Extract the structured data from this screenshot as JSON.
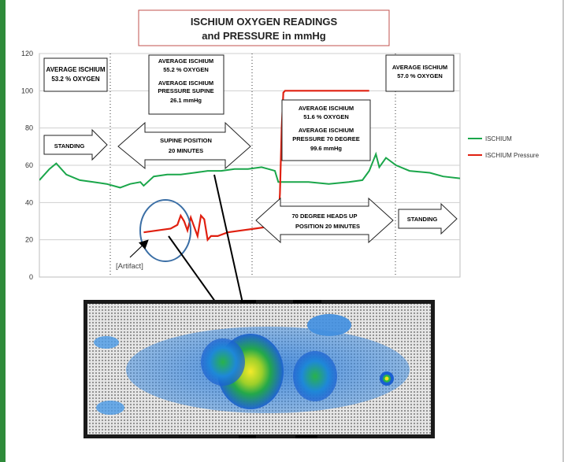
{
  "chart_data": {
    "type": "line",
    "title_line1": "ISCHIUM OXYGEN READINGS",
    "title_line2": "and PRESSURE in mmHg",
    "y_ticks": [
      "0",
      "20",
      "40",
      "60",
      "80",
      "100",
      "120"
    ],
    "ylim": [
      0,
      120
    ],
    "grid": true,
    "legend_position": "right",
    "series": [
      {
        "name": "ISCHIUM",
        "color": "#1aa64a",
        "points": [
          [
            0,
            52
          ],
          [
            3,
            58
          ],
          [
            5,
            61
          ],
          [
            8,
            55
          ],
          [
            12,
            52
          ],
          [
            16,
            51
          ],
          [
            20,
            50
          ],
          [
            24,
            48
          ],
          [
            27,
            50
          ],
          [
            30,
            51
          ],
          [
            31,
            49
          ],
          [
            34,
            54
          ],
          [
            38,
            55
          ],
          [
            42,
            55
          ],
          [
            46,
            56
          ],
          [
            50,
            57
          ],
          [
            54,
            57
          ],
          [
            58,
            58
          ],
          [
            62,
            58
          ],
          [
            66,
            59
          ],
          [
            68,
            58
          ],
          [
            70,
            57
          ],
          [
            71,
            51
          ],
          [
            74,
            51
          ],
          [
            80,
            51
          ],
          [
            86,
            50
          ],
          [
            92,
            51
          ],
          [
            96,
            52
          ],
          [
            98,
            57
          ],
          [
            100,
            66
          ],
          [
            101,
            59
          ],
          [
            103,
            64
          ],
          [
            106,
            60
          ],
          [
            110,
            57
          ],
          [
            116,
            56
          ],
          [
            120,
            54
          ],
          [
            125,
            53
          ]
        ]
      },
      {
        "name": "ISCHIUM Pressure",
        "color": "#e02010",
        "points": [
          [
            31,
            24
          ],
          [
            35,
            25
          ],
          [
            39,
            26
          ],
          [
            41,
            28
          ],
          [
            42,
            33
          ],
          [
            43,
            30
          ],
          [
            44,
            25
          ],
          [
            45,
            32
          ],
          [
            46,
            27
          ],
          [
            47,
            22
          ],
          [
            48,
            33
          ],
          [
            49,
            31
          ],
          [
            50,
            20
          ],
          [
            51,
            22
          ],
          [
            53,
            22
          ],
          [
            56,
            24
          ],
          [
            60,
            25
          ],
          [
            64,
            26
          ],
          [
            68,
            27
          ],
          [
            70,
            28
          ],
          [
            71,
            29
          ],
          [
            71.5,
            45
          ],
          [
            72,
            80
          ],
          [
            72.5,
            99
          ],
          [
            73,
            100
          ],
          [
            80,
            100
          ],
          [
            86,
            100
          ],
          [
            92,
            100
          ],
          [
            98,
            100
          ]
        ]
      }
    ]
  },
  "annotations": {
    "box1_l1": "AVERAGE ISCHIUM",
    "box1_l2": "53.2 % OXYGEN",
    "box2_l1": "AVERAGE ISCHIUM",
    "box2_l2": "55.2 % OXYGEN",
    "box2_l3": "AVERAGE ISCHIUM",
    "box2_l4": "PRESSURE SUPINE",
    "box2_l5": "26.1 mmHg",
    "box3_l1": "AVERAGE ISCHIUM",
    "box3_l2": "51.6 % OXYGEN",
    "box3_l3": "AVERAGE ISCHIUM",
    "box3_l4": "PRESSURE  70 DEGREE",
    "box3_l5": "99.6 mmHg",
    "box4_l1": "AVERAGE ISCHIUM",
    "box4_l2": "57.0 % OXYGEN",
    "arrow_standing_1": "STANDING",
    "arrow_supine_l1": "SUPINE POSITION",
    "arrow_supine_l2": "20 MINUTES",
    "arrow_70_l1": "70 DEGREE HEADS UP",
    "arrow_70_l2": "POSITION 20 MINUTES",
    "arrow_standing_2": "STANDING",
    "artifact_label": "[Artifact]"
  },
  "colors": {
    "frame": "#2e8b3a",
    "heatmap_low": "#1a5fd1",
    "heatmap_mid": "#2bb24c",
    "heatmap_high": "#f1e21a"
  }
}
